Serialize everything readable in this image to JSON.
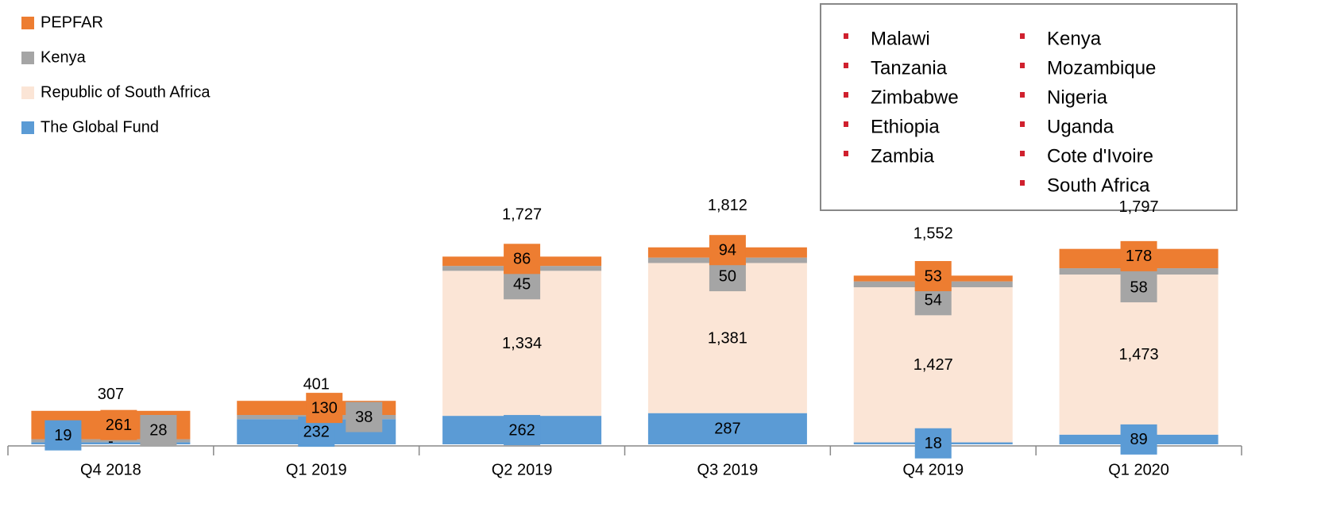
{
  "chart_data": {
    "type": "stacked_bar",
    "categories": [
      "Q4 2018",
      "Q1 2019",
      "Q2 2019",
      "Q3 2019",
      "Q4 2019",
      "Q1 2020"
    ],
    "series": [
      {
        "name": "The Global Fund",
        "color": "#5b9bd5",
        "values": [
          19,
          232,
          262,
          287,
          18,
          89
        ]
      },
      {
        "name": "Republic of South Africa",
        "color": "#fbe5d6",
        "values": [
          0,
          0,
          1334,
          1381,
          1427,
          1473
        ],
        "value_labels": [
          "-",
          null,
          "1,334",
          "1,381",
          "1,427",
          "1,473"
        ]
      },
      {
        "name": "Kenya",
        "color": "#a5a5a5",
        "values": [
          28,
          38,
          45,
          50,
          54,
          58
        ]
      },
      {
        "name": "PEPFAR",
        "color": "#ed7d31",
        "values": [
          261,
          130,
          86,
          94,
          53,
          178
        ]
      }
    ],
    "totals": [
      307,
      401,
      1727,
      1812,
      1552,
      1797
    ],
    "total_labels": [
      "307",
      "401",
      "1,727",
      "1,812",
      "1,552",
      "1,797"
    ],
    "countries": [
      "Malawi",
      "Tanzania",
      "Zimbabwe",
      "Ethiopia",
      "Zambia",
      "Kenya",
      "Mozambique",
      "Nigeria",
      "Uganda",
      "Cote d'Ivoire",
      "South Africa"
    ]
  }
}
